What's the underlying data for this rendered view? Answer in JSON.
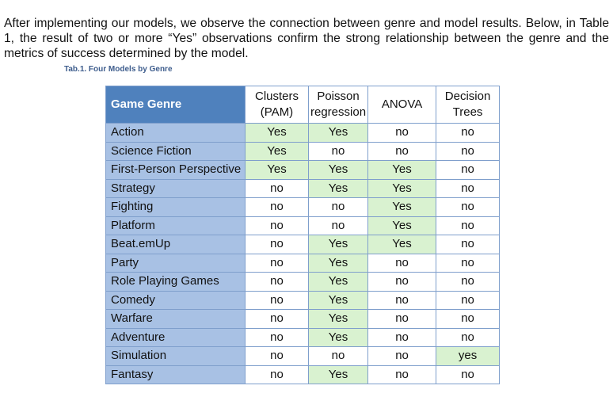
{
  "paragraph": "After implementing our models, we observe the connection between genre and model results. Below, in Table 1, the result of two or more “Yes” observations confirm the strong relationship between the genre and the metrics of success determined by the model.",
  "caption": "Tab.1. Four Models by Genre",
  "table": {
    "headers": {
      "genre": "Game Genre",
      "clusters_line1": "Clusters",
      "clusters_line2": "(PAM)",
      "poisson_line1": "Poisson",
      "poisson_line2": "regression",
      "anova": "ANOVA",
      "trees_line1": "Decision",
      "trees_line2": "Trees"
    },
    "rows": [
      {
        "genre": "Action",
        "values": [
          "Yes",
          "Yes",
          "no",
          "no"
        ],
        "highlight": [
          true,
          true,
          false,
          false
        ]
      },
      {
        "genre": "Science Fiction",
        "values": [
          "Yes",
          "no",
          "no",
          "no"
        ],
        "highlight": [
          true,
          false,
          false,
          false
        ]
      },
      {
        "genre": "First-Person Perspective",
        "values": [
          "Yes",
          "Yes",
          "Yes",
          "no"
        ],
        "highlight": [
          true,
          true,
          true,
          false
        ]
      },
      {
        "genre": "Strategy",
        "values": [
          "no",
          "Yes",
          "Yes",
          "no"
        ],
        "highlight": [
          false,
          true,
          true,
          false
        ]
      },
      {
        "genre": "Fighting",
        "values": [
          "no",
          "no",
          "Yes",
          "no"
        ],
        "highlight": [
          false,
          false,
          true,
          false
        ]
      },
      {
        "genre": "Platform",
        "values": [
          "no",
          "no",
          "Yes",
          "no"
        ],
        "highlight": [
          false,
          false,
          true,
          false
        ]
      },
      {
        "genre": "Beat.emUp",
        "values": [
          "no",
          "Yes",
          "Yes",
          "no"
        ],
        "highlight": [
          false,
          true,
          true,
          false
        ]
      },
      {
        "genre": "Party",
        "values": [
          "no",
          "Yes",
          "no",
          "no"
        ],
        "highlight": [
          false,
          true,
          false,
          false
        ]
      },
      {
        "genre": "Role Playing Games",
        "values": [
          "no",
          "Yes",
          "no",
          "no"
        ],
        "highlight": [
          false,
          true,
          false,
          false
        ]
      },
      {
        "genre": "Comedy",
        "values": [
          "no",
          "Yes",
          "no",
          "no"
        ],
        "highlight": [
          false,
          true,
          false,
          false
        ]
      },
      {
        "genre": "Warfare",
        "values": [
          "no",
          "Yes",
          "no",
          "no"
        ],
        "highlight": [
          false,
          true,
          false,
          false
        ]
      },
      {
        "genre": "Adventure",
        "values": [
          "no",
          "Yes",
          "no",
          "no"
        ],
        "highlight": [
          false,
          true,
          false,
          false
        ]
      },
      {
        "genre": "Simulation",
        "values": [
          "no",
          "no",
          "no",
          "yes"
        ],
        "highlight": [
          false,
          false,
          false,
          true
        ]
      },
      {
        "genre": "Fantasy",
        "values": [
          "no",
          "Yes",
          "no",
          "no"
        ],
        "highlight": [
          false,
          true,
          false,
          false
        ]
      }
    ]
  },
  "colors": {
    "header_bg": "#4f81bd",
    "genre_bg": "#a8c1e4",
    "highlight_bg": "#d9f2d0",
    "caption_color": "#3d5c8c"
  }
}
